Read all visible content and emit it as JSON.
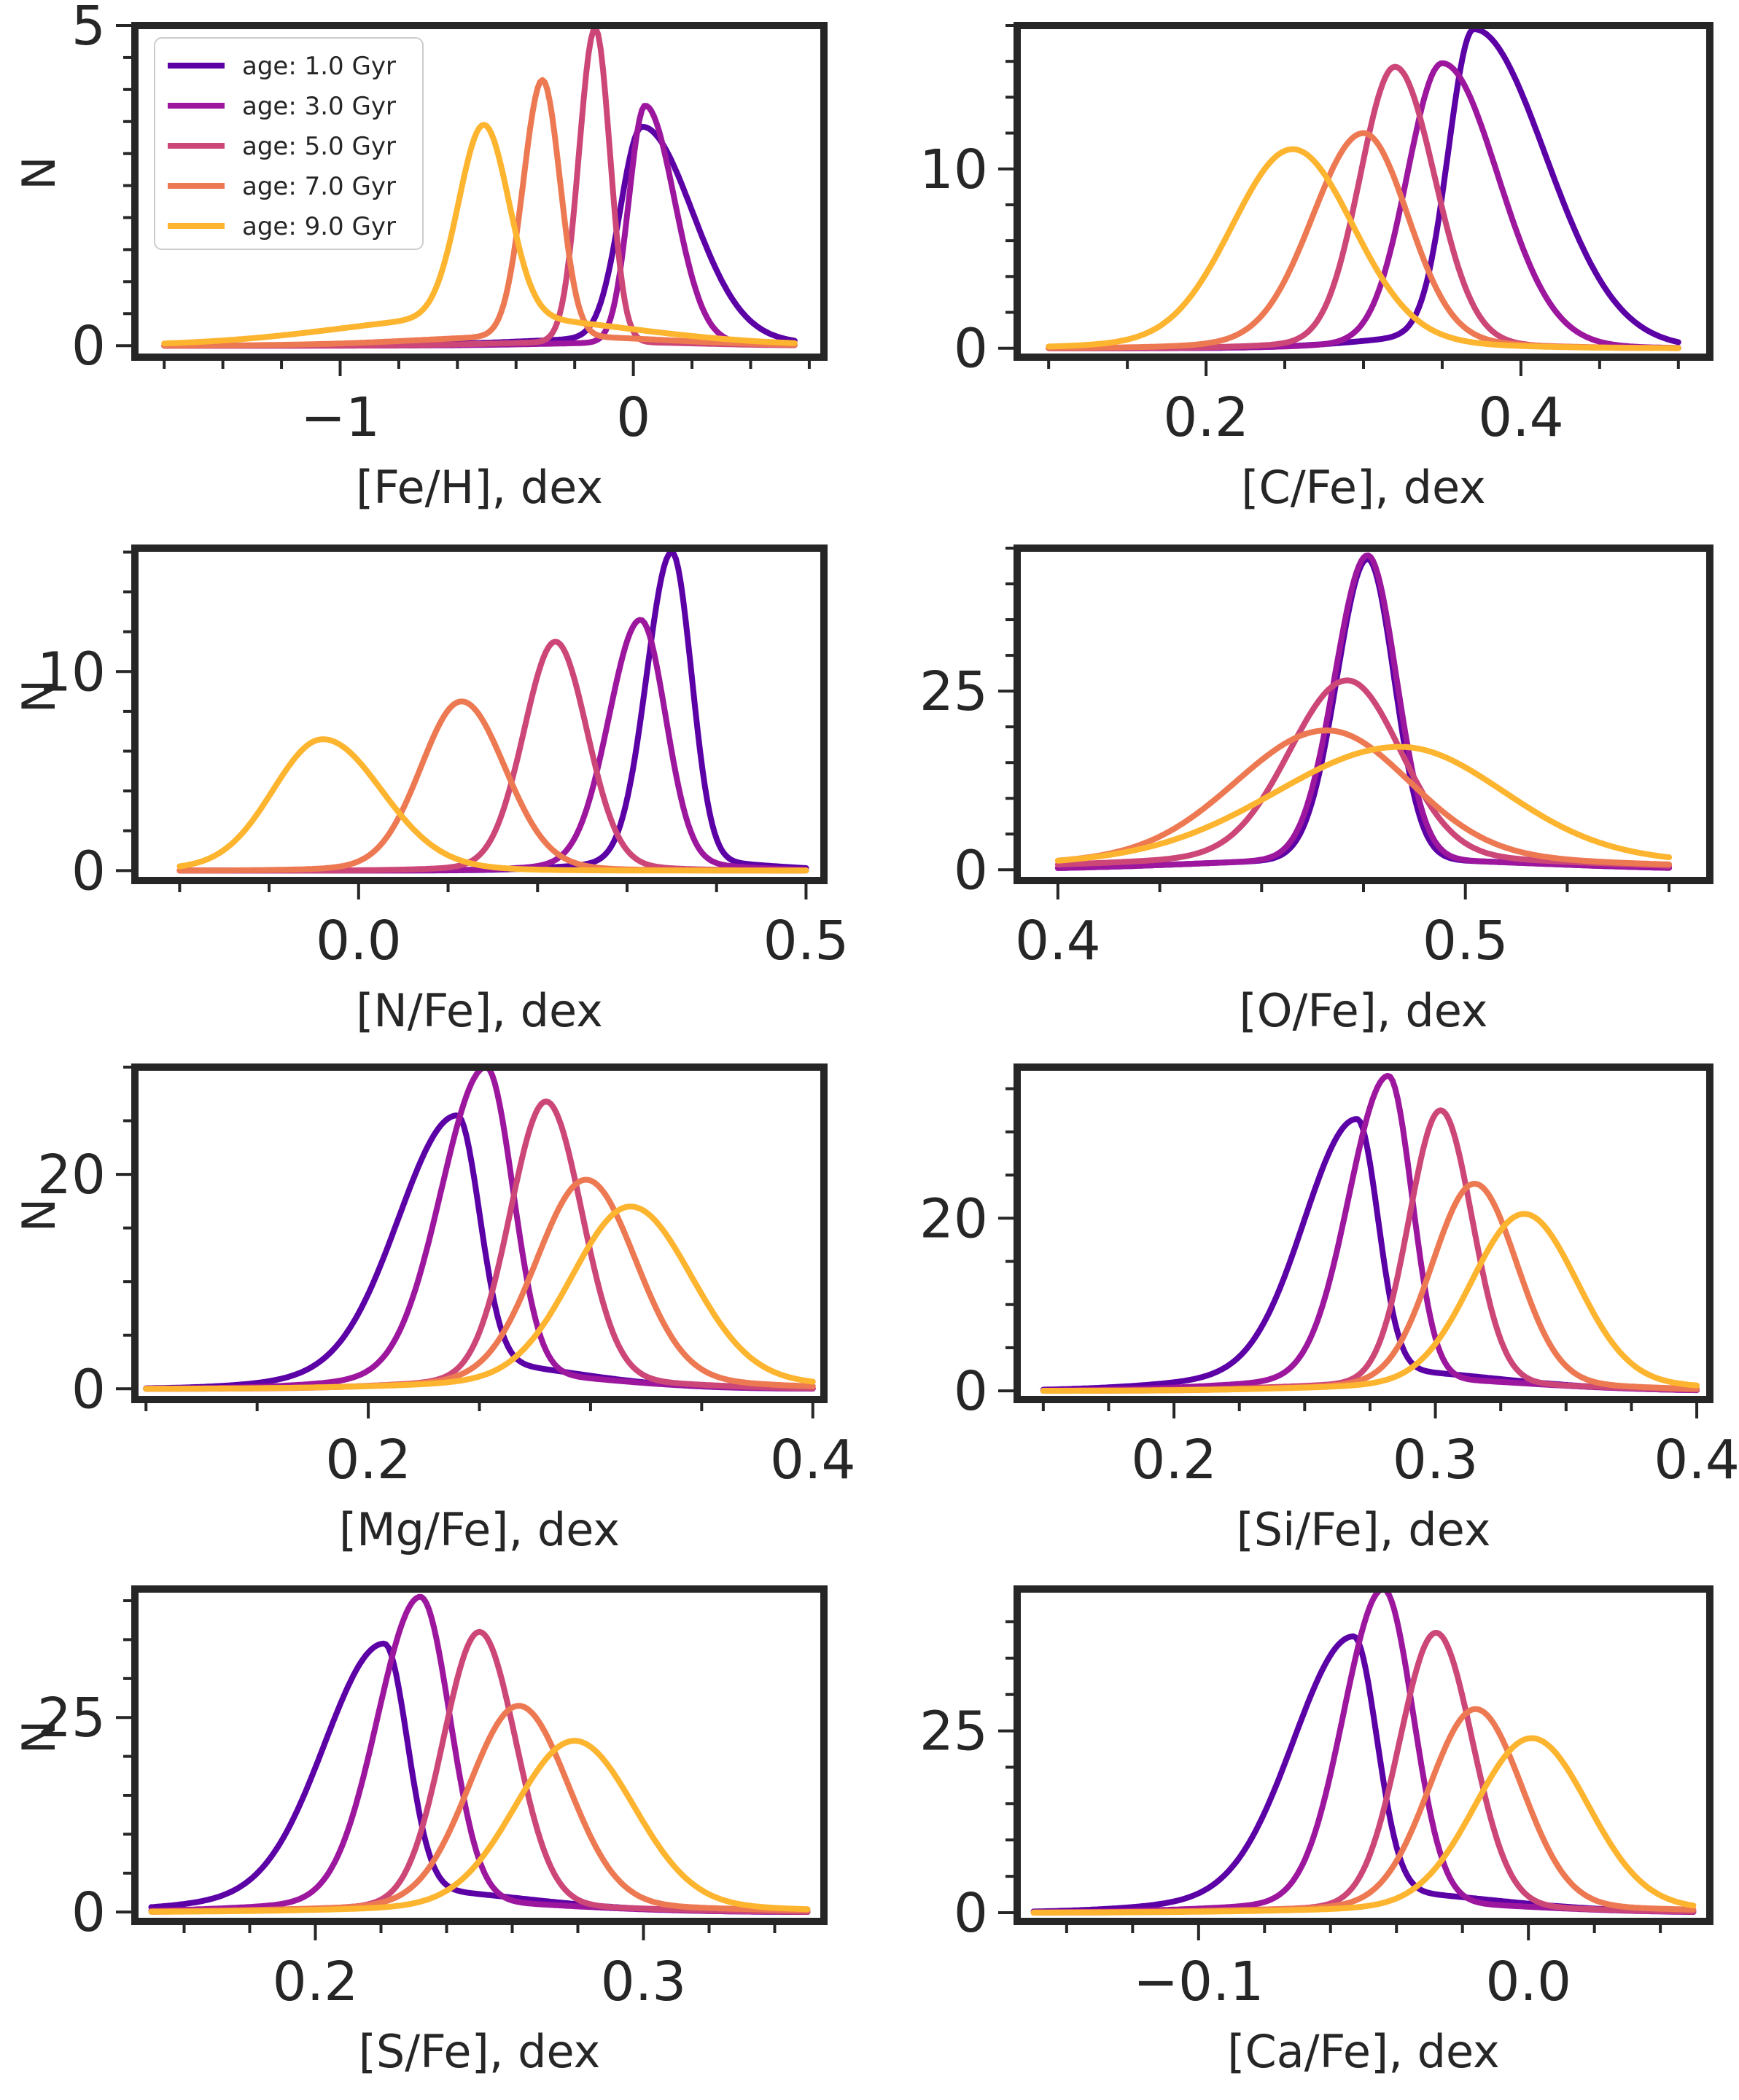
{
  "chart_data": {
    "type": "line",
    "series_meta": [
      {
        "name": "age: 1.0 Gyr",
        "color": "#5c01a6"
      },
      {
        "name": "age: 3.0 Gyr",
        "color": "#9c179e"
      },
      {
        "name": "age: 5.0 Gyr",
        "color": "#cc4778"
      },
      {
        "name": "age: 7.0 Gyr",
        "color": "#ed7953"
      },
      {
        "name": "age: 9.0 Gyr",
        "color": "#fdb42f"
      }
    ],
    "panels": [
      {
        "id": "feh",
        "xlabel": "[Fe/H], dex",
        "ylabel": "N",
        "xlim": [
          -1.7,
          0.65
        ],
        "ylim": [
          -0.18,
          5.0
        ],
        "xticks": [
          -1,
          0
        ],
        "xtick_labels": [
          "−1",
          "0"
        ],
        "yticks": [
          0,
          5
        ],
        "ytick_labels": [
          "0",
          "5"
        ],
        "minor_x": 0.2,
        "minor_y": 0.5,
        "xrange": [
          -1.6,
          0.55
        ],
        "legend": true,
        "peaks": [
          {
            "c": 0.03,
            "a": 3.3,
            "wl": 0.075,
            "wr": 0.17,
            "tail": 0.12,
            "tw": 0.38
          },
          {
            "c": 0.04,
            "a": 3.7,
            "wl": 0.055,
            "wr": 0.1,
            "tail": 0.05,
            "tw": 0.32
          },
          {
            "c": -0.13,
            "a": 4.9,
            "wl": 0.055,
            "wr": 0.05,
            "tail": 0.06,
            "tw": 0.32
          },
          {
            "c": -0.31,
            "a": 4.0,
            "wl": 0.065,
            "wr": 0.06,
            "tail": 0.15,
            "tw": 0.4
          },
          {
            "c": -0.51,
            "a": 3.0,
            "wl": 0.085,
            "wr": 0.085,
            "tail": 0.45,
            "tw": 0.48
          }
        ]
      },
      {
        "id": "cfe",
        "xlabel": "[C/Fe], dex",
        "ylabel": "",
        "xlim": [
          0.08,
          0.52
        ],
        "ylim": [
          -0.5,
          18.0
        ],
        "xticks": [
          0.2,
          0.4
        ],
        "xtick_labels": [
          "0.2",
          "0.4"
        ],
        "yticks": [
          0,
          10
        ],
        "ytick_labels": [
          "0",
          "10"
        ],
        "minor_x": 0.05,
        "minor_y": 2,
        "xrange": [
          0.1,
          0.5
        ],
        "legend": false,
        "peaks": [
          {
            "c": 0.37,
            "a": 17.0,
            "wl": 0.016,
            "wr": 0.045,
            "tail": 0.8,
            "tw": 0.06
          },
          {
            "c": 0.35,
            "a": 15.5,
            "wl": 0.022,
            "wr": 0.035,
            "tail": 0.4,
            "tw": 0.06
          },
          {
            "c": 0.32,
            "a": 15.3,
            "wl": 0.022,
            "wr": 0.025,
            "tail": 0.4,
            "tw": 0.06
          },
          {
            "c": 0.3,
            "a": 11.5,
            "wl": 0.032,
            "wr": 0.028,
            "tail": 0.5,
            "tw": 0.07
          },
          {
            "c": 0.255,
            "a": 10.5,
            "wl": 0.038,
            "wr": 0.038,
            "tail": 0.6,
            "tw": 0.08
          }
        ]
      },
      {
        "id": "nfe",
        "xlabel": "[N/Fe], dex",
        "ylabel": "N",
        "xlim": [
          -0.25,
          0.52
        ],
        "ylim": [
          -0.5,
          16.2
        ],
        "xticks": [
          0.0,
          0.5
        ],
        "xtick_labels": [
          "0.0",
          "0.5"
        ],
        "yticks": [
          0,
          10
        ],
        "ytick_labels": [
          "0",
          "10"
        ],
        "minor_x": 0.1,
        "minor_y": 2,
        "xrange": [
          -0.2,
          0.5
        ],
        "legend": false,
        "peaks": [
          {
            "c": 0.35,
            "a": 15.5,
            "wl": 0.028,
            "wr": 0.022,
            "tail": 0.5,
            "tw": 0.09
          },
          {
            "c": 0.315,
            "a": 12.2,
            "wl": 0.035,
            "wr": 0.028,
            "tail": 0.4,
            "tw": 0.09
          },
          {
            "c": 0.22,
            "a": 11.2,
            "wl": 0.035,
            "wr": 0.035,
            "tail": 0.3,
            "tw": 0.09
          },
          {
            "c": 0.115,
            "a": 8.2,
            "wl": 0.045,
            "wr": 0.048,
            "tail": 0.3,
            "tw": 0.1
          },
          {
            "c": -0.04,
            "a": 6.3,
            "wl": 0.055,
            "wr": 0.065,
            "tail": 0.3,
            "tw": 0.12
          }
        ]
      },
      {
        "id": "ofe",
        "xlabel": "[O/Fe], dex",
        "ylabel": "",
        "xlim": [
          0.39,
          0.56
        ],
        "ylim": [
          -1.5,
          45.0
        ],
        "xticks": [
          0.4,
          0.5
        ],
        "xtick_labels": [
          "0.4",
          "0.5"
        ],
        "yticks": [
          0,
          25
        ],
        "ytick_labels": [
          "0",
          "25"
        ],
        "minor_x": 0.025,
        "minor_y": 5,
        "xrange": [
          0.4,
          0.55
        ],
        "legend": false,
        "peaks": [
          {
            "c": 0.476,
            "a": 42.0,
            "wl": 0.0075,
            "wr": 0.0065,
            "tail": 1.5,
            "tw": 0.04
          },
          {
            "c": 0.476,
            "a": 42.5,
            "wl": 0.008,
            "wr": 0.007,
            "tail": 1.5,
            "tw": 0.04
          },
          {
            "c": 0.471,
            "a": 24.5,
            "wl": 0.014,
            "wr": 0.013,
            "tail": 2.0,
            "tw": 0.05
          },
          {
            "c": 0.466,
            "a": 17.5,
            "wl": 0.022,
            "wr": 0.02,
            "tail": 2.0,
            "tw": 0.06
          },
          {
            "c": 0.484,
            "a": 15.2,
            "wl": 0.03,
            "wr": 0.025,
            "tail": 2.0,
            "tw": 0.07
          }
        ]
      },
      {
        "id": "mgfe",
        "xlabel": "[Mg/Fe], dex",
        "ylabel": "N",
        "xlim": [
          0.095,
          0.405
        ],
        "ylim": [
          -1.0,
          30.0
        ],
        "xticks": [
          0.2,
          0.4
        ],
        "xtick_labels": [
          "0.2",
          "0.4"
        ],
        "yticks": [
          0,
          20
        ],
        "ytick_labels": [
          "0",
          "20"
        ],
        "minor_x": 0.05,
        "minor_y": 5,
        "xrange": [
          0.1,
          0.4
        ],
        "legend": false,
        "peaks": [
          {
            "c": 0.24,
            "a": 23.0,
            "wl": 0.026,
            "wr": 0.01,
            "tail": 2.5,
            "tw": 0.05
          },
          {
            "c": 0.253,
            "a": 28.5,
            "wl": 0.02,
            "wr": 0.012,
            "tail": 1.5,
            "tw": 0.05
          },
          {
            "c": 0.28,
            "a": 25.8,
            "wl": 0.016,
            "wr": 0.016,
            "tail": 1.0,
            "tw": 0.05
          },
          {
            "c": 0.298,
            "a": 18.5,
            "wl": 0.022,
            "wr": 0.022,
            "tail": 1.0,
            "tw": 0.06
          },
          {
            "c": 0.318,
            "a": 16.0,
            "wl": 0.026,
            "wr": 0.027,
            "tail": 1.0,
            "tw": 0.07
          }
        ]
      },
      {
        "id": "sife",
        "xlabel": "[Si/Fe], dex",
        "ylabel": "",
        "xlim": [
          0.14,
          0.405
        ],
        "ylim": [
          -1.0,
          37.5
        ],
        "xticks": [
          0.2,
          0.3,
          0.4
        ],
        "xtick_labels": [
          "0.2",
          "0.3",
          "0.4"
        ],
        "yticks": [
          0,
          20
        ],
        "ytick_labels": [
          "0",
          "20"
        ],
        "minor_x": 0.025,
        "minor_y": 5,
        "xrange": [
          0.15,
          0.4
        ],
        "legend": false,
        "peaks": [
          {
            "c": 0.27,
            "a": 29.0,
            "wl": 0.02,
            "wr": 0.008,
            "tail": 2.5,
            "tw": 0.05
          },
          {
            "c": 0.282,
            "a": 35.0,
            "wl": 0.015,
            "wr": 0.009,
            "tail": 1.5,
            "tw": 0.05
          },
          {
            "c": 0.302,
            "a": 31.5,
            "wl": 0.012,
            "wr": 0.012,
            "tail": 1.0,
            "tw": 0.05
          },
          {
            "c": 0.315,
            "a": 23.0,
            "wl": 0.016,
            "wr": 0.016,
            "tail": 1.0,
            "tw": 0.05
          },
          {
            "c": 0.334,
            "a": 19.5,
            "wl": 0.02,
            "wr": 0.02,
            "tail": 1.0,
            "tw": 0.06
          }
        ]
      },
      {
        "id": "sfe",
        "xlabel": "[S/Fe], dex",
        "ylabel": "N",
        "xlim": [
          0.145,
          0.355
        ],
        "ylim": [
          -1.2,
          41.5
        ],
        "xticks": [
          0.2,
          0.3
        ],
        "xtick_labels": [
          "0.2",
          "0.3"
        ],
        "yticks": [
          0,
          25
        ],
        "ytick_labels": [
          "0",
          "25"
        ],
        "minor_x": 0.02,
        "minor_y": 5,
        "xrange": [
          0.15,
          0.35
        ],
        "legend": false,
        "peaks": [
          {
            "c": 0.221,
            "a": 31.5,
            "wl": 0.018,
            "wr": 0.007,
            "tail": 3.0,
            "tw": 0.04
          },
          {
            "c": 0.232,
            "a": 39.0,
            "wl": 0.013,
            "wr": 0.009,
            "tail": 1.5,
            "tw": 0.04
          },
          {
            "c": 0.25,
            "a": 35.0,
            "wl": 0.011,
            "wr": 0.011,
            "tail": 1.0,
            "tw": 0.04
          },
          {
            "c": 0.262,
            "a": 25.5,
            "wl": 0.015,
            "wr": 0.015,
            "tail": 1.0,
            "tw": 0.05
          },
          {
            "c": 0.279,
            "a": 21.0,
            "wl": 0.018,
            "wr": 0.018,
            "tail": 1.0,
            "tw": 0.05
          }
        ]
      },
      {
        "id": "cafe",
        "xlabel": "[Ca/Fe], dex",
        "ylabel": "",
        "xlim": [
          -0.155,
          0.055
        ],
        "ylim": [
          -1.2,
          44.5
        ],
        "xticks": [
          -0.1,
          0.0
        ],
        "xtick_labels": [
          "−0.1",
          "0.0"
        ],
        "yticks": [
          0,
          25
        ],
        "ytick_labels": [
          "0",
          "25"
        ],
        "minor_x": 0.02,
        "minor_y": 5,
        "xrange": [
          -0.15,
          0.05
        ],
        "legend": false,
        "peaks": [
          {
            "c": -0.053,
            "a": 35.0,
            "wl": 0.018,
            "wr": 0.007,
            "tail": 3.0,
            "tw": 0.04
          },
          {
            "c": -0.044,
            "a": 43.0,
            "wl": 0.012,
            "wr": 0.009,
            "tail": 1.5,
            "tw": 0.04
          },
          {
            "c": -0.028,
            "a": 37.5,
            "wl": 0.011,
            "wr": 0.011,
            "tail": 1.0,
            "tw": 0.04
          },
          {
            "c": -0.016,
            "a": 27.0,
            "wl": 0.014,
            "wr": 0.014,
            "tail": 1.0,
            "tw": 0.05
          },
          {
            "c": 0.001,
            "a": 23.0,
            "wl": 0.017,
            "wr": 0.017,
            "tail": 1.0,
            "tw": 0.05
          }
        ]
      }
    ]
  }
}
